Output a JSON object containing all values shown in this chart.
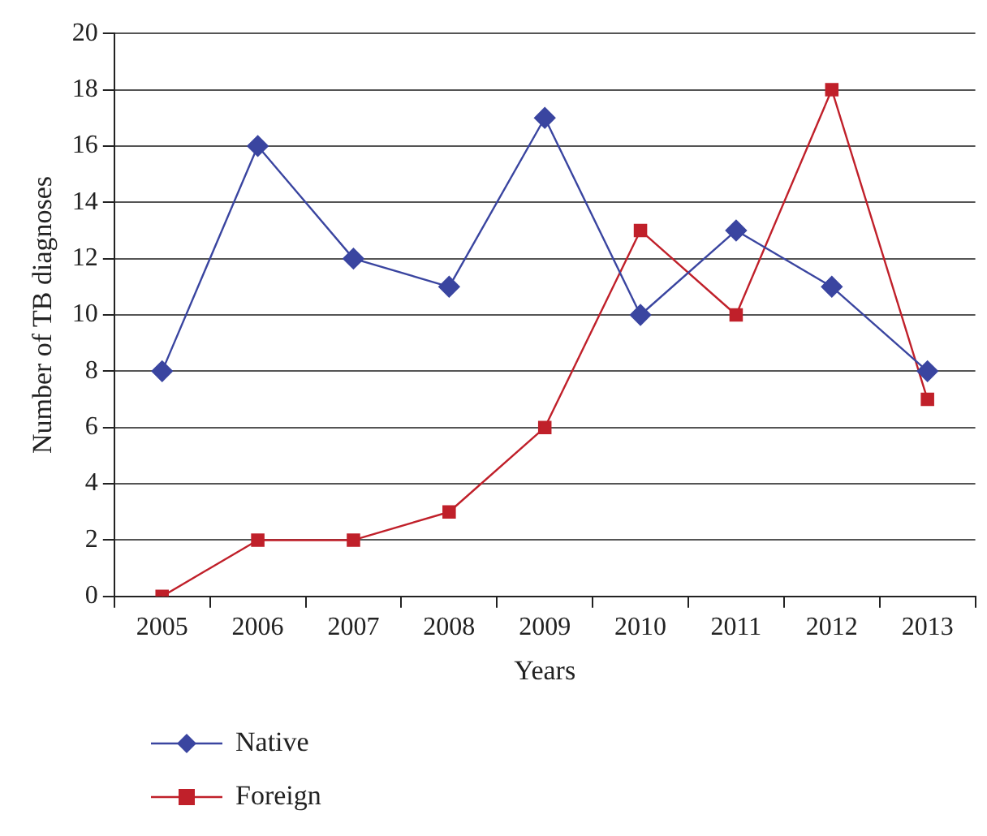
{
  "chart_data": {
    "type": "line",
    "xlabel": "Years",
    "ylabel": "Number of TB diagnoses",
    "categories": [
      "2005",
      "2006",
      "2007",
      "2008",
      "2009",
      "2010",
      "2011",
      "2012",
      "2013"
    ],
    "series": [
      {
        "name": "Native",
        "color": "#3a45a0",
        "marker": "diamond",
        "values": [
          8,
          16,
          12,
          11,
          17,
          10,
          13,
          11,
          8
        ]
      },
      {
        "name": "Foreign",
        "color": "#c0202a",
        "marker": "square",
        "values": [
          0,
          2,
          2,
          3,
          6,
          13,
          10,
          18,
          7
        ]
      }
    ],
    "ylim": [
      0,
      20
    ],
    "yticks": [
      0,
      2,
      4,
      6,
      8,
      10,
      12,
      14,
      16,
      18,
      20
    ],
    "grid": "y",
    "legend": "bottom left"
  }
}
